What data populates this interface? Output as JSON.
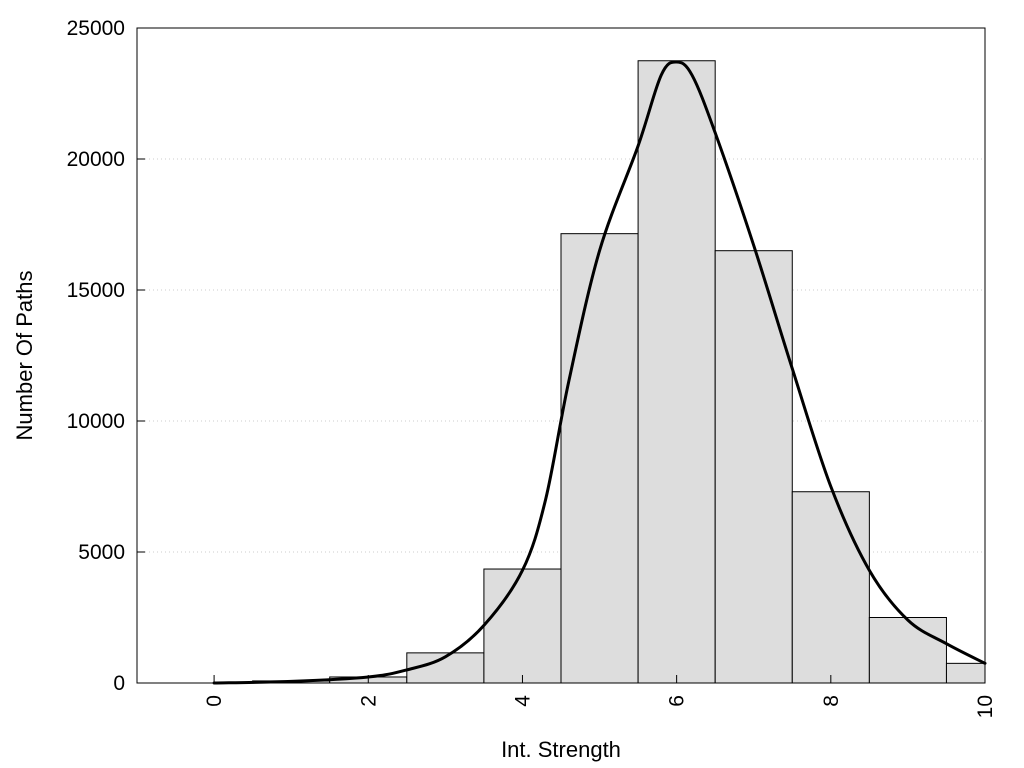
{
  "chart_data": {
    "type": "bar",
    "xlabel": "Int. Strength",
    "ylabel": "Number Of Paths",
    "xlim": [
      -1,
      10
    ],
    "ylim": [
      0,
      25000
    ],
    "x_ticks": [
      "0",
      "2",
      "4",
      "6",
      "8",
      "10"
    ],
    "y_ticks": [
      "0",
      "5000",
      "10000",
      "15000",
      "20000",
      "25000"
    ],
    "grid": "horizontal-dotted",
    "bins": [
      {
        "x0": 0,
        "x1": 0.5,
        "value": 30
      },
      {
        "x0": 0.5,
        "x1": 1.5,
        "value": 80
      },
      {
        "x0": 1.5,
        "x1": 2.5,
        "value": 230
      },
      {
        "x0": 2.5,
        "x1": 3.5,
        "value": 1150
      },
      {
        "x0": 3.5,
        "x1": 4.5,
        "value": 4350
      },
      {
        "x0": 4.5,
        "x1": 5.5,
        "value": 17150
      },
      {
        "x0": 5.5,
        "x1": 6.5,
        "value": 23750
      },
      {
        "x0": 6.5,
        "x1": 7.5,
        "value": 16500
      },
      {
        "x0": 7.5,
        "x1": 8.5,
        "value": 7300
      },
      {
        "x0": 8.5,
        "x1": 9.5,
        "value": 2500
      },
      {
        "x0": 9.5,
        "x1": 10,
        "value": 750
      }
    ],
    "curve": [
      [
        0,
        0
      ],
      [
        1,
        60
      ],
      [
        2,
        230
      ],
      [
        2.5,
        500
      ],
      [
        3,
        1000
      ],
      [
        3.5,
        2200
      ],
      [
        4,
        4300
      ],
      [
        4.3,
        7000
      ],
      [
        4.6,
        11500
      ],
      [
        5,
        16500
      ],
      [
        5.5,
        20500
      ],
      [
        5.8,
        23200
      ],
      [
        6,
        23700
      ],
      [
        6.2,
        23200
      ],
      [
        6.5,
        21000
      ],
      [
        7,
        16700
      ],
      [
        7.5,
        12000
      ],
      [
        8,
        7500
      ],
      [
        8.5,
        4300
      ],
      [
        9,
        2400
      ],
      [
        9.5,
        1500
      ],
      [
        10,
        750
      ]
    ],
    "colors": {
      "bar_fill": "#dddddd",
      "bar_stroke": "#000000",
      "curve": "#000000",
      "grid": "#cccccc"
    }
  }
}
